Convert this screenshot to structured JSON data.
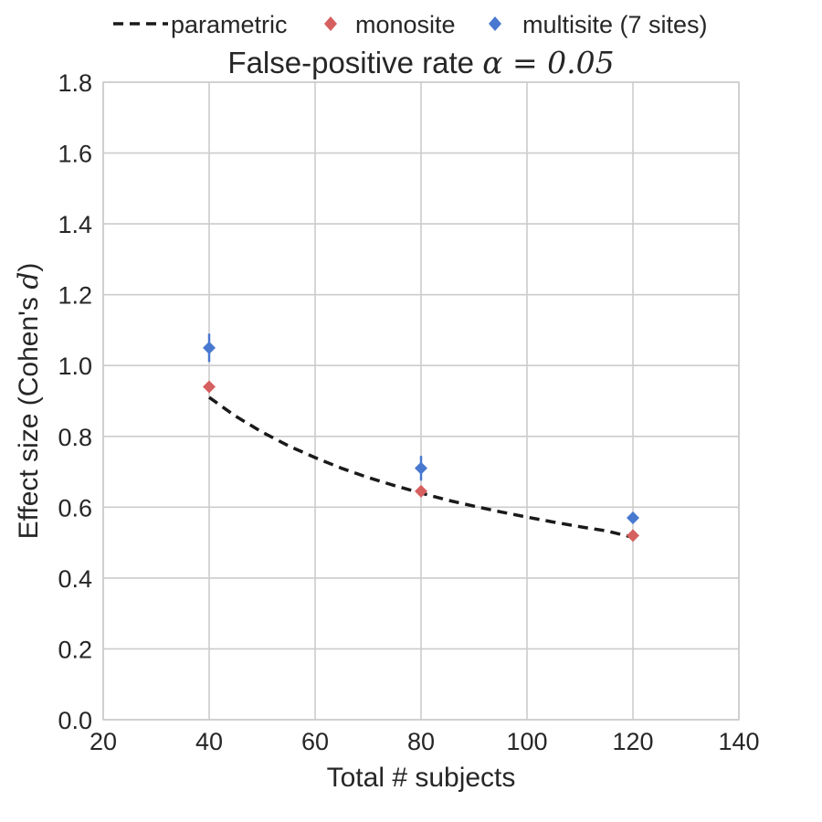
{
  "chart_data": {
    "type": "scatter",
    "title": "False-positive rate ",
    "title_math": "α = 0.05",
    "xlabel": "Total # subjects",
    "ylabel": "Effect size (Cohen's ",
    "ylabel_math": "d",
    "ylabel_close": ")",
    "xlim": [
      20,
      140
    ],
    "ylim": [
      0.0,
      1.8
    ],
    "xticks": [
      20,
      40,
      60,
      80,
      100,
      120,
      140
    ],
    "xtick_labels": [
      "20",
      "40",
      "60",
      "80",
      "100",
      "120",
      "140"
    ],
    "yticks": [
      0.0,
      0.2,
      0.4,
      0.6,
      0.8,
      1.0,
      1.2,
      1.4,
      1.6,
      1.8
    ],
    "ytick_labels": [
      "0.0",
      "0.2",
      "0.4",
      "0.6",
      "0.8",
      "1.0",
      "1.2",
      "1.4",
      "1.6",
      "1.8"
    ],
    "grid": true,
    "legend_position": "top-center, above title",
    "series": [
      {
        "name": "parametric",
        "kind": "line",
        "style": "dashed",
        "color": "#1a1a1a",
        "x": [
          40,
          45,
          50,
          55,
          60,
          65,
          70,
          75,
          80,
          85,
          90,
          95,
          100,
          105,
          110,
          115,
          120
        ],
        "y": [
          0.91,
          0.857,
          0.812,
          0.773,
          0.74,
          0.71,
          0.684,
          0.661,
          0.64,
          0.62,
          0.603,
          0.587,
          0.572,
          0.558,
          0.545,
          0.533,
          0.515
        ]
      },
      {
        "name": "monosite",
        "kind": "marker",
        "marker": "diamond",
        "color": "#d65f5f",
        "x": [
          40,
          80,
          120
        ],
        "y": [
          0.94,
          0.645,
          0.52
        ],
        "err": [
          0.0,
          0.0,
          0.0
        ]
      },
      {
        "name": "multisite (7 sites)",
        "kind": "marker",
        "marker": "diamond",
        "color": "#4878cf",
        "x": [
          40,
          80,
          120
        ],
        "y": [
          1.05,
          0.71,
          0.57
        ],
        "err": [
          0.04,
          0.035,
          0.015
        ]
      }
    ]
  }
}
